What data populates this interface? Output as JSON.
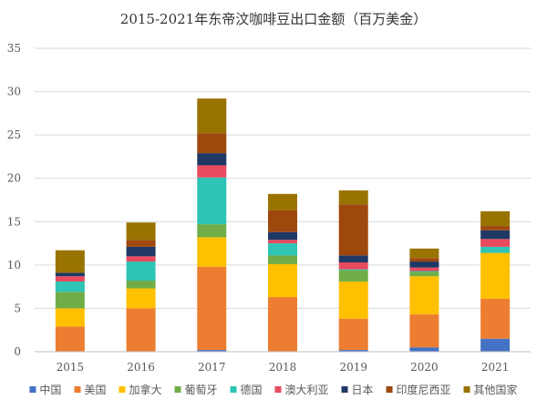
{
  "chart_data": {
    "type": "bar",
    "stacked": true,
    "title": "2015-2021年东帝汶咖啡豆出口金额（百万美金）",
    "categories": [
      "2015",
      "2016",
      "2017",
      "2018",
      "2019",
      "2020",
      "2021"
    ],
    "ylim": [
      0,
      35
    ],
    "yticks": [
      "0",
      "5",
      "10",
      "15",
      "20",
      "25",
      "30",
      "35"
    ],
    "grid": true,
    "legend_position": "bottom",
    "series": [
      {
        "name": "中国",
        "color": "#4472C4",
        "values": [
          0.0,
          0.0,
          0.2,
          0.0,
          0.2,
          0.5,
          1.5
        ]
      },
      {
        "name": "美国",
        "color": "#ED7D31",
        "values": [
          2.9,
          5.0,
          9.6,
          6.3,
          3.6,
          3.8,
          4.6
        ]
      },
      {
        "name": "加拿大",
        "color": "#FFC000",
        "values": [
          2.1,
          2.3,
          3.4,
          3.8,
          4.3,
          4.4,
          5.3
        ]
      },
      {
        "name": "葡萄牙",
        "color": "#70AD47",
        "values": [
          1.9,
          0.9,
          1.5,
          1.0,
          1.3,
          0.5,
          0.0
        ]
      },
      {
        "name": "德国",
        "color": "#2EC4B6",
        "values": [
          1.2,
          2.2,
          5.4,
          1.4,
          0.1,
          0.1,
          0.7
        ]
      },
      {
        "name": "澳大利亚",
        "color": "#E84A5F",
        "values": [
          0.6,
          0.6,
          1.4,
          0.4,
          0.8,
          0.4,
          0.9
        ]
      },
      {
        "name": "日本",
        "color": "#1F3864",
        "values": [
          0.4,
          1.1,
          1.4,
          0.9,
          0.8,
          0.7,
          1.0
        ]
      },
      {
        "name": "印度尼西亚",
        "color": "#9E480E",
        "values": [
          0.0,
          0.8,
          2.3,
          2.5,
          5.9,
          0.4,
          0.5
        ]
      },
      {
        "name": "其他国家",
        "color": "#997300",
        "values": [
          2.6,
          2.0,
          4.0,
          1.9,
          1.6,
          1.1,
          1.7
        ]
      }
    ]
  }
}
